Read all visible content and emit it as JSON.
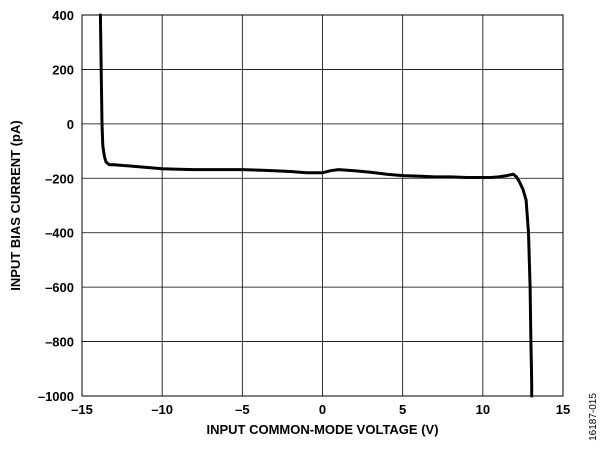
{
  "chart_data": {
    "type": "line",
    "title": "",
    "xlabel": "INPUT COMMON-MODE VOLTAGE (V)",
    "ylabel": "INPUT BIAS CURRENT (pA)",
    "xlim": [
      -15,
      15
    ],
    "ylim": [
      -1000,
      400
    ],
    "xticks": [
      -15,
      -10,
      -5,
      0,
      5,
      10,
      15
    ],
    "yticks": [
      -1000,
      -800,
      -600,
      -400,
      -200,
      0,
      200,
      400
    ],
    "xtick_labels": [
      "–15",
      "–10",
      "–5",
      "0",
      "5",
      "10",
      "15"
    ],
    "ytick_labels": [
      "–1000",
      "–800",
      "–600",
      "–400",
      "–200",
      "0",
      "200",
      "400"
    ],
    "grid": true,
    "series": [
      {
        "name": "",
        "color": "#000000",
        "x": [
          -13.85,
          -13.75,
          -13.7,
          -13.6,
          -13.5,
          -13.3,
          -13.0,
          -12.0,
          -11.0,
          -10.0,
          -9.0,
          -8.0,
          -7.0,
          -6.0,
          -5.0,
          -4.0,
          -3.0,
          -2.0,
          -1.0,
          0.0,
          0.5,
          1.0,
          2.0,
          3.0,
          4.0,
          5.0,
          6.0,
          7.0,
          8.0,
          9.0,
          10.0,
          10.5,
          11.0,
          11.5,
          11.9,
          12.1,
          12.3,
          12.5,
          12.7,
          12.85,
          12.95,
          13.0,
          13.05,
          13.05
        ],
        "y": [
          400,
          0,
          -80,
          -120,
          -140,
          -150,
          -150,
          -155,
          -160,
          -165,
          -167,
          -168,
          -168,
          -168,
          -168,
          -170,
          -172,
          -175,
          -180,
          -180,
          -172,
          -168,
          -172,
          -178,
          -185,
          -190,
          -192,
          -195,
          -195,
          -197,
          -197,
          -197,
          -195,
          -190,
          -185,
          -195,
          -215,
          -240,
          -280,
          -400,
          -600,
          -800,
          -950,
          -1000
        ]
      }
    ],
    "figure_id": "16187-015"
  }
}
